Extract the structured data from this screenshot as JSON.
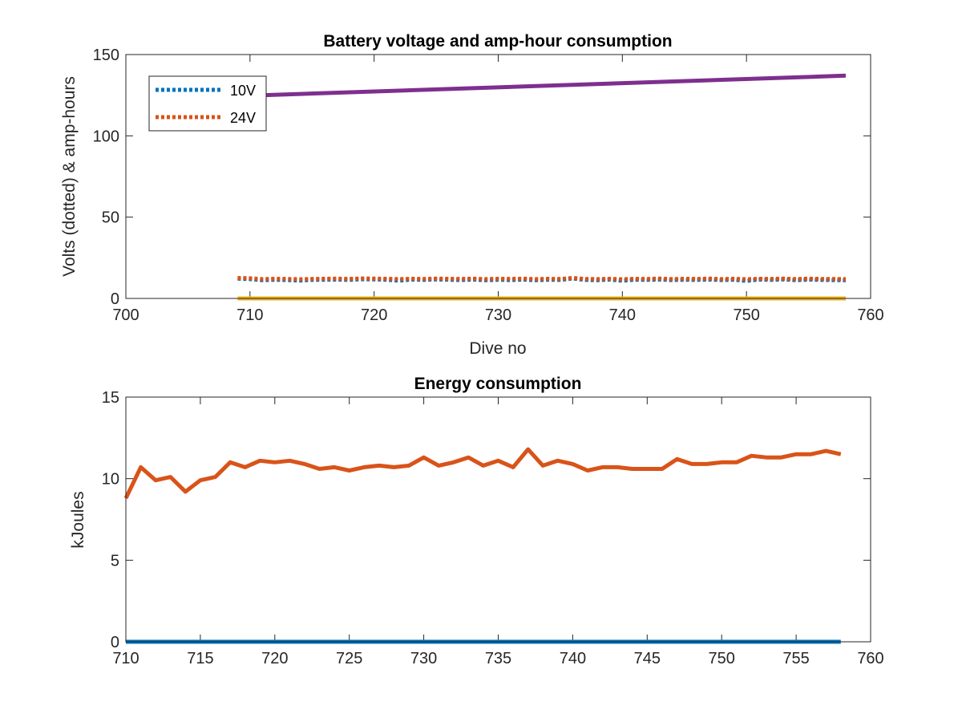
{
  "chart_data": [
    {
      "type": "line",
      "title": "Battery voltage and amp-hour consumption",
      "xlabel": "Dive no",
      "ylabel": "Volts (dotted) & amp-hours",
      "xlim": [
        700,
        760
      ],
      "ylim": [
        0,
        150
      ],
      "xticks": [
        "700",
        "710",
        "720",
        "730",
        "740",
        "750",
        "760"
      ],
      "yticks": [
        "0",
        "50",
        "100",
        "150"
      ],
      "grid": false,
      "legend_position": "top-left",
      "series": [
        {
          "name": "10V",
          "color": "#0072BD",
          "style": "dotted",
          "x": [
            709,
            710,
            711,
            712,
            713,
            714,
            715,
            716,
            717,
            718,
            719,
            720,
            721,
            722,
            723,
            724,
            725,
            726,
            727,
            728,
            729,
            730,
            731,
            732,
            733,
            734,
            735,
            736,
            737,
            738,
            739,
            740,
            741,
            742,
            743,
            744,
            745,
            746,
            747,
            748,
            749,
            750,
            751,
            752,
            753,
            754,
            755,
            756,
            757,
            758
          ],
          "values": [
            12.2,
            11.9,
            11.2,
            11.5,
            11.3,
            11.0,
            11.4,
            11.5,
            11.6,
            11.4,
            11.8,
            11.7,
            11.5,
            10.9,
            11.6,
            11.4,
            11.7,
            11.5,
            11.3,
            11.6,
            11.2,
            11.5,
            11.3,
            11.6,
            11.2,
            11.5,
            11.4,
            12.3,
            11.4,
            11.2,
            11.6,
            10.9,
            11.5,
            11.4,
            11.6,
            11.3,
            11.5,
            11.4,
            11.6,
            11.3,
            11.5,
            10.8,
            11.6,
            11.4,
            11.7,
            11.2,
            11.6,
            11.4,
            11.3,
            11.2
          ]
        },
        {
          "name": "24V",
          "color": "#D95319",
          "style": "dotted",
          "x": [
            709,
            710,
            711,
            712,
            713,
            714,
            715,
            716,
            717,
            718,
            719,
            720,
            721,
            722,
            723,
            724,
            725,
            726,
            727,
            728,
            729,
            730,
            731,
            732,
            733,
            734,
            735,
            736,
            737,
            738,
            739,
            740,
            741,
            742,
            743,
            744,
            745,
            746,
            747,
            748,
            749,
            750,
            751,
            752,
            753,
            754,
            755,
            756,
            757,
            758
          ],
          "values": [
            12.6,
            12.4,
            11.9,
            12.1,
            12.0,
            11.8,
            12.0,
            12.1,
            12.2,
            12.0,
            12.3,
            12.2,
            12.1,
            11.9,
            12.1,
            12.0,
            12.2,
            12.1,
            12.0,
            12.2,
            11.9,
            12.1,
            12.0,
            12.2,
            11.9,
            12.1,
            12.0,
            12.6,
            12.0,
            11.9,
            12.1,
            11.8,
            12.1,
            12.0,
            12.2,
            11.9,
            12.1,
            12.0,
            12.2,
            11.9,
            12.1,
            11.8,
            12.1,
            12.0,
            12.2,
            11.9,
            12.2,
            12.0,
            12.0,
            11.9
          ]
        },
        {
          "color": "#EDB120",
          "style": "solid",
          "x": [
            709,
            758
          ],
          "values": [
            0,
            0
          ]
        },
        {
          "color": "#7E2F8E",
          "style": "solid",
          "x": [
            709,
            758
          ],
          "values": [
            124.5,
            137
          ]
        }
      ]
    },
    {
      "type": "line",
      "title": "Energy consumption",
      "xlabel": "",
      "ylabel": "kJoules",
      "xlim": [
        710,
        760
      ],
      "ylim": [
        0,
        15
      ],
      "xticks": [
        "710",
        "715",
        "720",
        "725",
        "730",
        "735",
        "740",
        "745",
        "750",
        "755",
        "760"
      ],
      "yticks": [
        "0",
        "5",
        "10",
        "15"
      ],
      "grid": false,
      "series": [
        {
          "color": "#0072BD",
          "style": "solid",
          "x": [
            710,
            758
          ],
          "values": [
            0,
            0
          ]
        },
        {
          "color": "#D95319",
          "style": "solid",
          "x": [
            710,
            711,
            712,
            713,
            714,
            715,
            716,
            717,
            718,
            719,
            720,
            721,
            722,
            723,
            724,
            725,
            726,
            727,
            728,
            729,
            730,
            731,
            732,
            733,
            734,
            735,
            736,
            737,
            738,
            739,
            740,
            741,
            742,
            743,
            744,
            745,
            746,
            747,
            748,
            749,
            750,
            751,
            752,
            753,
            754,
            755,
            756,
            757,
            758
          ],
          "values": [
            8.8,
            10.7,
            9.9,
            10.1,
            9.2,
            9.9,
            10.1,
            11.0,
            10.7,
            11.1,
            11.0,
            11.1,
            10.9,
            10.6,
            10.7,
            10.5,
            10.7,
            10.8,
            10.7,
            10.8,
            11.3,
            10.8,
            11.0,
            11.3,
            10.8,
            11.1,
            10.7,
            11.8,
            10.8,
            11.1,
            10.9,
            10.5,
            10.7,
            10.7,
            10.6,
            10.6,
            10.6,
            11.2,
            10.9,
            10.9,
            11.0,
            11.0,
            11.4,
            11.3,
            11.3,
            11.5,
            11.5,
            11.7,
            11.5
          ]
        }
      ]
    }
  ]
}
